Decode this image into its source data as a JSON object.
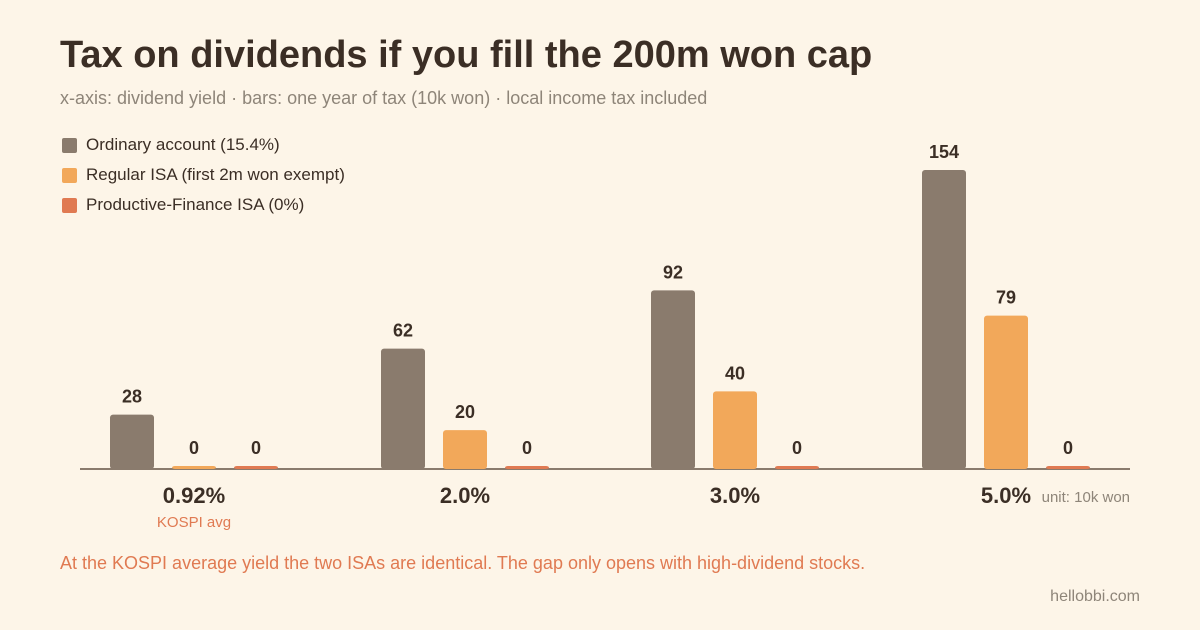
{
  "title": "Tax on dividends if you fill the 200m won cap",
  "subtitle": "x-axis: dividend yield · bars: one year of tax (10k won) · local income tax included",
  "unit_label": "unit: 10k won",
  "footnote": "At the KOSPI average yield the two ISAs are identical. The gap only opens with high-dividend stocks.",
  "source": "hellobbi.com",
  "colors": {
    "ordinary": "#8a7b6d",
    "regular_isa": "#f2a85a",
    "pf_isa": "#e07a52",
    "annotation": "#e07a52",
    "axis": "#8a7b6d"
  },
  "chart_data": {
    "type": "bar",
    "title": "Tax on dividends if you fill the 200m won cap",
    "subtitle": "x-axis: dividend yield · bars: one year of tax (10k won) · local income tax included",
    "xlabel": "",
    "ylabel": "",
    "categories": [
      "0.92%",
      "2.0%",
      "3.0%",
      "5.0%"
    ],
    "category_notes": [
      "KOSPI avg",
      "",
      "",
      ""
    ],
    "series": [
      {
        "name": "Ordinary account (15.4%)",
        "values": [
          28,
          62,
          92,
          154
        ]
      },
      {
        "name": "Regular ISA (first 2m won exempt)",
        "values": [
          0,
          20,
          40,
          79
        ]
      },
      {
        "name": "Productive-Finance ISA (0%)",
        "values": [
          0,
          0,
          0,
          0
        ]
      }
    ],
    "ylim": [
      0,
      154
    ],
    "grid": false,
    "legend": "top-left",
    "data_labels": true
  }
}
